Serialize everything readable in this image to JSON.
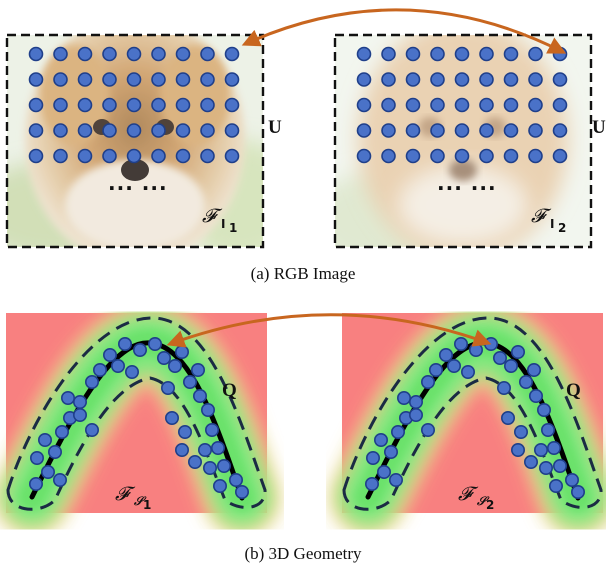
{
  "panel_a": {
    "caption": "(a) RGB Image",
    "grid_label": "U",
    "left_feature": {
      "symbol": "𝓕",
      "subscript": "I",
      "index": "1"
    },
    "right_feature": {
      "symbol": "𝓕",
      "subscript": "I",
      "index": "2"
    },
    "ellipsis": "··· ···"
  },
  "panel_b": {
    "caption": "(b) 3D Geometry",
    "points_label": "Q",
    "left_feature": {
      "symbol": "𝓕",
      "subscript": "𝒮",
      "index": "1"
    },
    "right_feature": {
      "symbol": "𝓕",
      "subscript": "𝒮",
      "index": "2"
    }
  },
  "colors": {
    "point_fill": "#4a72c8",
    "point_stroke": "#1f3f8a",
    "arrow": "#c8661f",
    "background_pink": "#f88080",
    "band_green": "#7ee87e",
    "dashed_border": "#1b2b44"
  }
}
